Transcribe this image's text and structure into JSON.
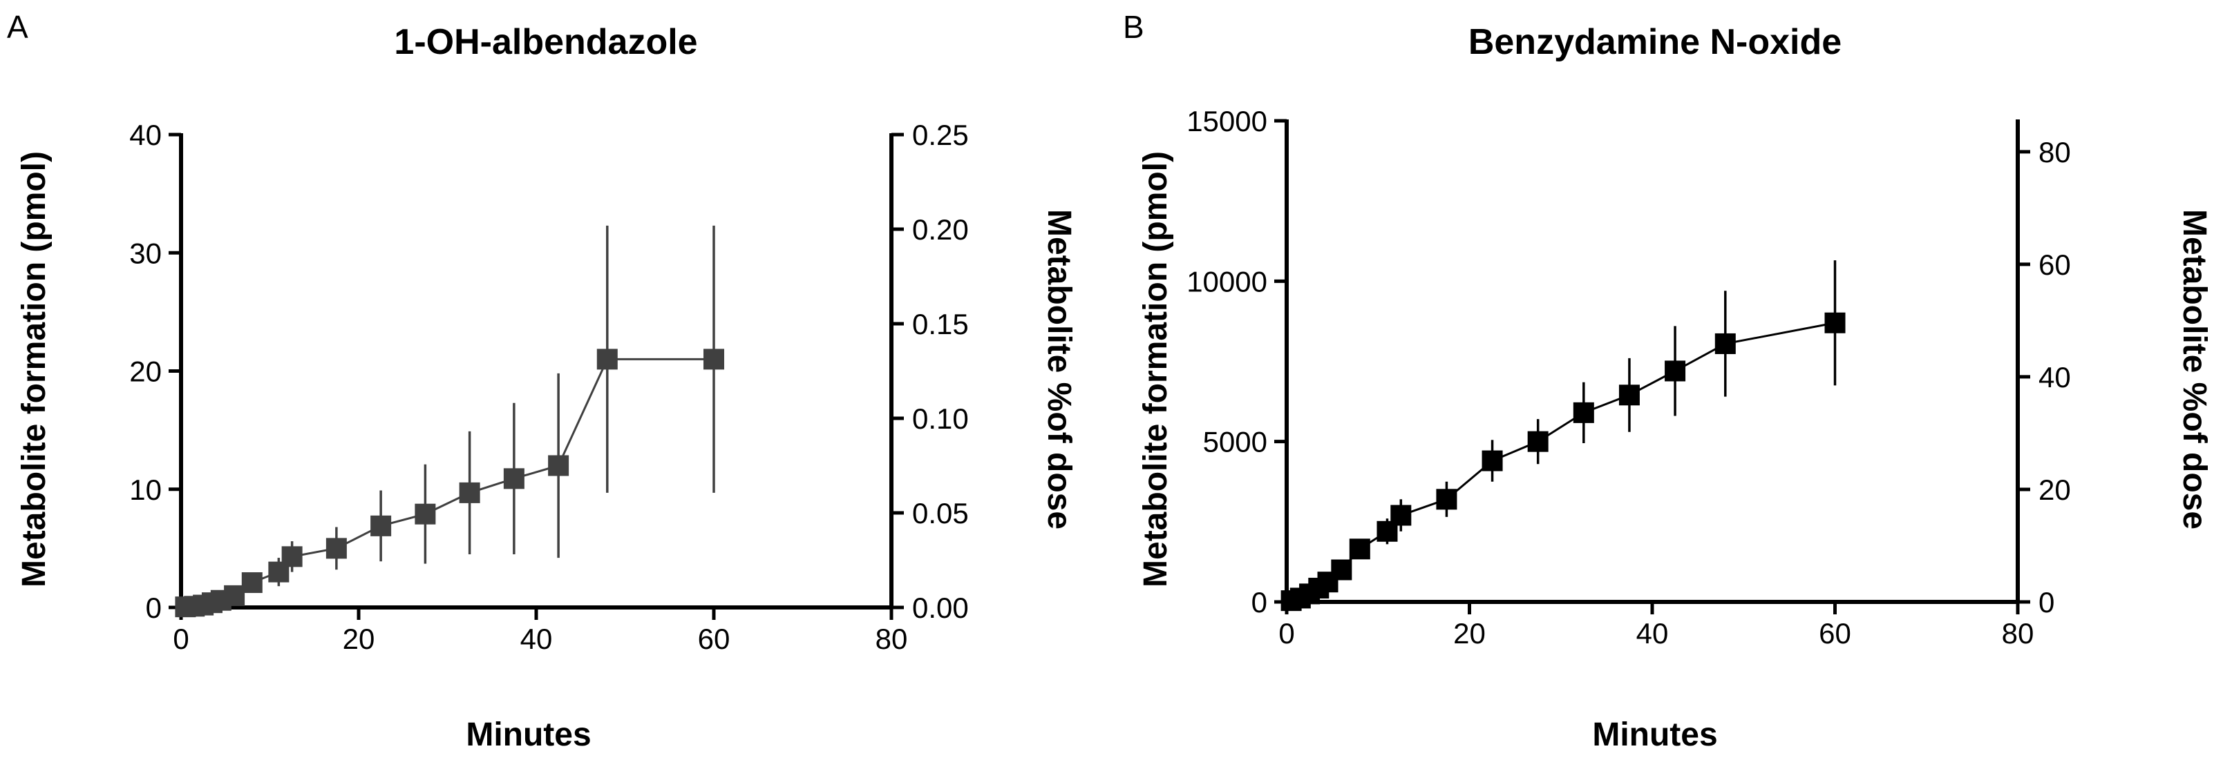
{
  "chart_data": [
    {
      "panel": "A",
      "type": "line",
      "title": "1-OH-albendazole",
      "xlabel": "Minutes",
      "ylabel": "Metabolite formation (pmol)",
      "y2label": "Metabolite %of dose",
      "xlim": [
        0,
        80
      ],
      "ylim": [
        0,
        40
      ],
      "y2lim": [
        0,
        0.25
      ],
      "xticks": [
        "0",
        "20",
        "40",
        "60",
        "80"
      ],
      "yticks": [
        "0",
        "10",
        "20",
        "30",
        "40"
      ],
      "y2ticks": [
        "0.00",
        "0.05",
        "0.10",
        "0.15",
        "0.20",
        "0.25"
      ],
      "color": "#404040",
      "marker": "square",
      "series": [
        {
          "x": [
            0.5,
            1.5,
            2.5,
            3.5,
            4.5,
            6,
            8,
            11,
            12.5,
            17.5,
            22.5,
            27.5,
            32.5,
            37.5,
            42.5,
            48,
            60
          ],
          "values": [
            0.05,
            0.1,
            0.2,
            0.4,
            0.6,
            1.0,
            2.1,
            3.0,
            4.3,
            5.0,
            6.9,
            7.9,
            9.7,
            10.9,
            12.0,
            21.0,
            21.0
          ],
          "error": [
            0,
            0,
            0,
            0,
            0.2,
            0.3,
            0.5,
            1.2,
            1.3,
            1.8,
            3.0,
            4.2,
            5.2,
            6.4,
            7.8,
            11.3,
            11.3
          ]
        }
      ]
    },
    {
      "panel": "B",
      "type": "line",
      "title": "Benzydamine N-oxide",
      "xlabel": "Minutes",
      "ylabel": "Metabolite formation (pmol)",
      "y2label": "Metabolite %of dose",
      "xlim": [
        0,
        80
      ],
      "ylim": [
        0,
        15000
      ],
      "y2lim": [
        0,
        85.5
      ],
      "xticks": [
        "0",
        "20",
        "40",
        "60",
        "80"
      ],
      "yticks": [
        "0",
        "5000",
        "10000",
        "15000"
      ],
      "y2ticks": [
        "0",
        "20",
        "40",
        "60",
        "80"
      ],
      "y2tick_values": [
        0,
        20,
        40,
        60,
        80
      ],
      "color": "#000000",
      "marker": "square",
      "series": [
        {
          "x": [
            0.5,
            1.5,
            2.5,
            3.5,
            4.5,
            6,
            8,
            11,
            12.5,
            17.5,
            22.5,
            27.5,
            32.5,
            37.5,
            42.5,
            48,
            60
          ],
          "values": [
            40,
            120,
            250,
            430,
            620,
            1000,
            1650,
            2200,
            2700,
            3200,
            4400,
            5000,
            5900,
            6450,
            7200,
            8050,
            8700
          ],
          "error": [
            0,
            0,
            0,
            0,
            0,
            150,
            250,
            400,
            500,
            550,
            650,
            700,
            950,
            1150,
            1400,
            1650,
            1950
          ]
        }
      ]
    }
  ]
}
